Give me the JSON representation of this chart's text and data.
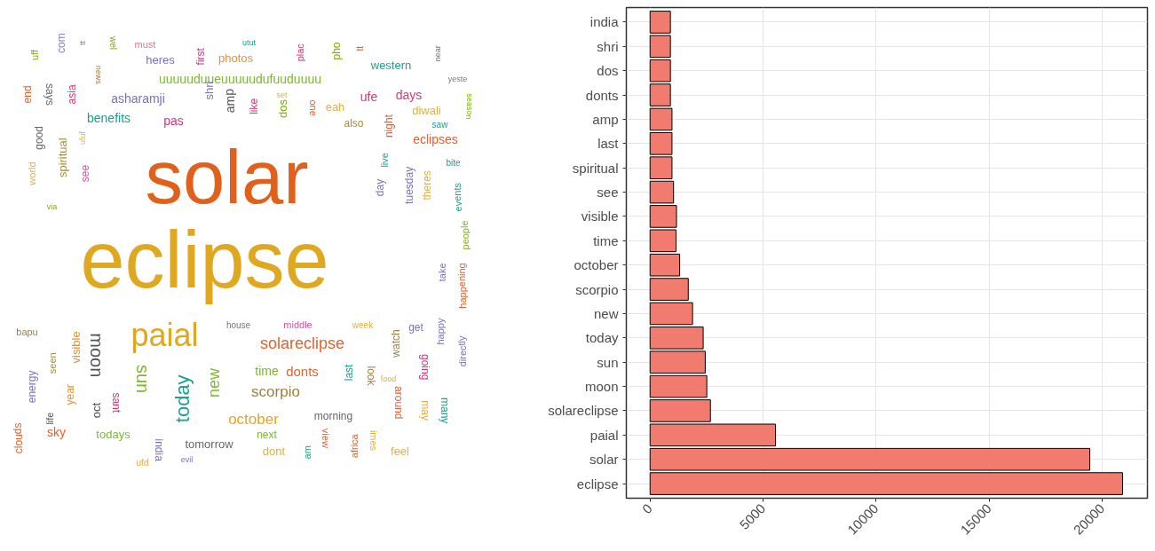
{
  "chart_data": [
    {
      "type": "other",
      "annotations": [
        "uff",
        "com",
        "tt",
        "news",
        "wel",
        "must",
        "heres",
        "first",
        "photos",
        "utut",
        "uuuuuduueuuuuudufuuduuuu",
        "end",
        "says",
        "asia",
        "asharamji",
        "shri",
        "amp",
        "like",
        "benefits",
        "pas",
        "good",
        "spiritual",
        "ufuf",
        "world",
        "see",
        "plac",
        "pho",
        "tt",
        "near",
        "western",
        "yeste",
        "set",
        "ufe",
        "days",
        "dos",
        "one",
        "eah",
        "also",
        "diwali",
        "season",
        "night",
        "saw",
        "eclipses",
        "live",
        "day",
        "tuesday",
        "theres",
        "bite",
        "events",
        "solar",
        "eclipse",
        "via",
        "people",
        "take",
        "happening",
        "bapu",
        "energy",
        "life",
        "seen",
        "year",
        "visible",
        "moon",
        "oct",
        "sant",
        "paial",
        "sun",
        "today",
        "new",
        "india",
        "sky",
        "todays",
        "tomorrow",
        "clouds",
        "ufd",
        "evil",
        "house",
        "middle",
        "week",
        "solareclipse",
        "watch",
        "get",
        "happy",
        "directly",
        "time",
        "donts",
        "last",
        "look",
        "food",
        "going",
        "scorpio",
        "around",
        "may",
        "many",
        "october",
        "morning",
        "next",
        "view",
        "africa",
        "imes",
        "feel",
        "dont",
        "am"
      ],
      "colors": [
        "#7cae00",
        "#8a7fc0",
        "#777777",
        "#a08040",
        "#7cae00",
        "#e078a0",
        "#7a70c0",
        "#e0307a",
        "#e89030",
        "#1aa090",
        "#7cb830",
        "#e8602c",
        "#666666",
        "#e0307a",
        "#7a70c0",
        "#7a70c0",
        "#555555",
        "#e0307a",
        "#1aa090",
        "#e0307a",
        "#666666",
        "#a09040",
        "#e0b040",
        "#e0b040",
        "#e0509a",
        "#e0307a",
        "#7cae00",
        "#e8602c",
        "#777777",
        "#1aa090",
        "#777777",
        "#e0b040",
        "#e0307a",
        "#e0307a",
        "#7cae00",
        "#e8602c",
        "#e0b040",
        "#a09040",
        "#e0b040",
        "#7cae00",
        "#e8602c",
        "#1aa090",
        "#e8602c",
        "#1aa090",
        "#7a70c0",
        "#7a70c0",
        "#e0b040",
        "#1aa090",
        "#1aa090",
        "#e0601c",
        "#e0a820",
        "#7cae00",
        "#80b030",
        "#7a70c0",
        "#e8602c",
        "#a08040",
        "#7a70c0",
        "#555555",
        "#a09040",
        "#e89030",
        "#e89030",
        "#555555",
        "#555555",
        "#e0307a",
        "#e0a820",
        "#7cb830",
        "#1aa090",
        "#7cb830",
        "#7a70c0",
        "#e8602c",
        "#7cb830",
        "#666666",
        "#e8602c",
        "#e0b040",
        "#7a70c0",
        "#777777",
        "#e0509a",
        "#e0b040",
        "#e8602c",
        "#a08040",
        "#7a70c0",
        "#7a70c0",
        "#7a70c0",
        "#7cb830",
        "#e8602c",
        "#1aa090",
        "#a08040",
        "#e0b040",
        "#e0307a",
        "#a08040",
        "#e8602c",
        "#e0b040",
        "#1aa090",
        "#e0a820",
        "#666666",
        "#7cb830",
        "#e8602c",
        "#e8602c",
        "#e0b040",
        "#e0b040",
        "#e0b040",
        "#1aa090"
      ]
    },
    {
      "type": "bar",
      "orientation": "horizontal",
      "categories": [
        "india",
        "shri",
        "dos",
        "donts",
        "amp",
        "last",
        "spiritual",
        "see",
        "visible",
        "time",
        "october",
        "scorpio",
        "new",
        "today",
        "sun",
        "moon",
        "solareclipse",
        "paial",
        "solar",
        "eclipse"
      ],
      "values": [
        900,
        900,
        900,
        900,
        970,
        970,
        970,
        1040,
        1170,
        1150,
        1310,
        1690,
        1880,
        2350,
        2440,
        2510,
        2670,
        5550,
        19450,
        20900
      ],
      "color": "#f07b6e",
      "xlim": [
        -1050,
        22000
      ],
      "xticks": [
        0,
        5000,
        10000,
        15000,
        20000
      ],
      "grid": true
    }
  ]
}
